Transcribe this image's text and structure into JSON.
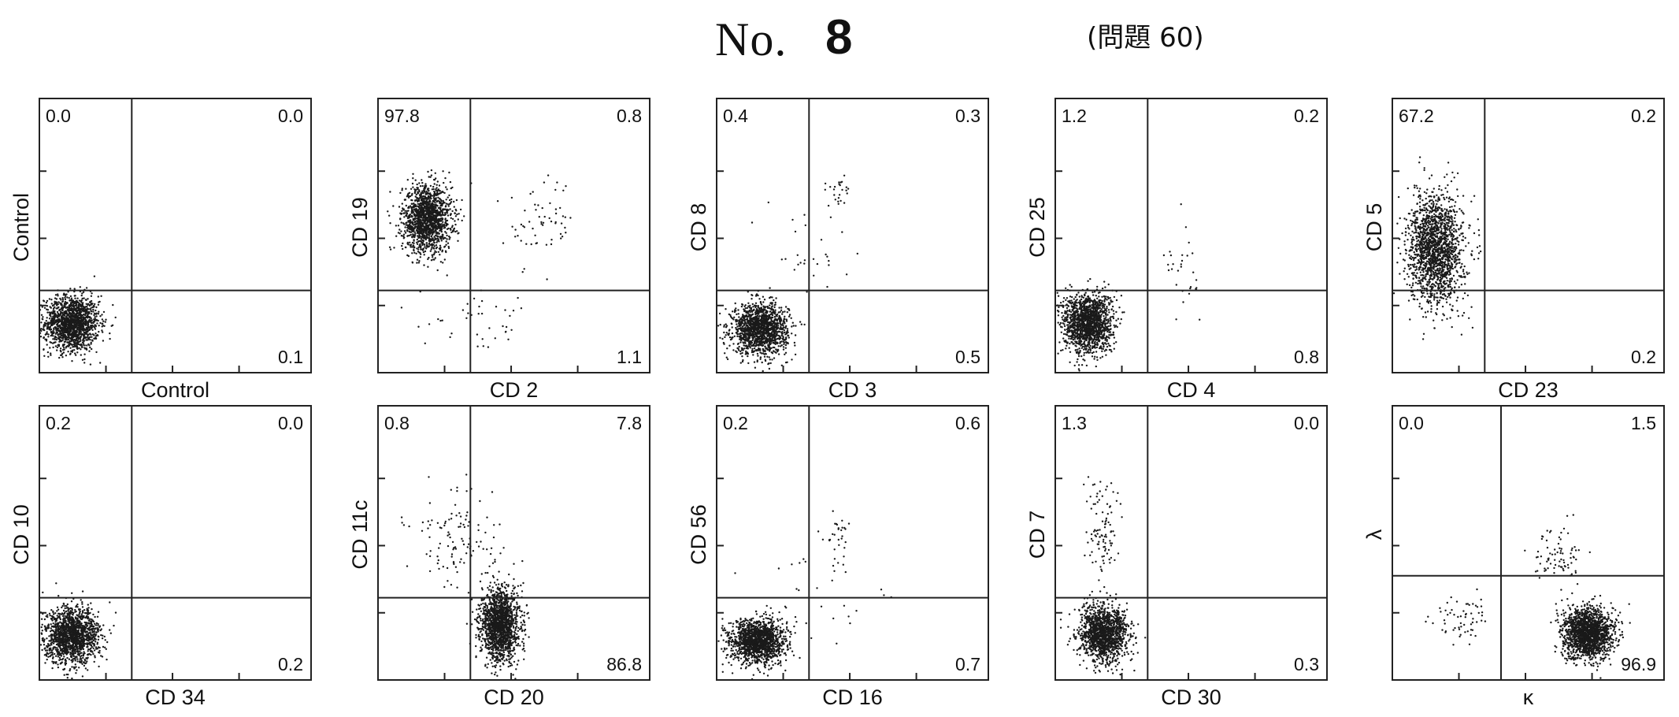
{
  "header": {
    "title_no": "No.",
    "title_number": "8",
    "reference": "(問題 60)"
  },
  "chart_data": [
    {
      "type": "scatter",
      "xlabel": "Control",
      "ylabel": "Control",
      "quadrants": {
        "upper_left": "0.0",
        "upper_right": "0.0",
        "lower_left": "",
        "lower_right": "0.1"
      },
      "populations": [
        {
          "cx": 0.12,
          "cy": 0.18,
          "sx": 0.1,
          "sy": 0.1,
          "n": 1500
        }
      ],
      "gate_x": 0.34,
      "gate_y": 0.3
    },
    {
      "type": "scatter",
      "xlabel": "CD 2",
      "ylabel": "CD 19",
      "quadrants": {
        "upper_left": "97.8",
        "upper_right": "0.8",
        "lower_left": "",
        "lower_right": "1.1"
      },
      "populations": [
        {
          "cx": 0.18,
          "cy": 0.56,
          "sx": 0.09,
          "sy": 0.12,
          "n": 1500
        },
        {
          "cx": 0.6,
          "cy": 0.55,
          "sx": 0.12,
          "sy": 0.16,
          "n": 60
        },
        {
          "cx": 0.4,
          "cy": 0.18,
          "sx": 0.25,
          "sy": 0.1,
          "n": 40
        }
      ],
      "gate_x": 0.34,
      "gate_y": 0.3
    },
    {
      "type": "scatter",
      "xlabel": "CD 3",
      "ylabel": "CD 8",
      "quadrants": {
        "upper_left": "0.4",
        "upper_right": "0.3",
        "lower_left": "",
        "lower_right": "0.5"
      },
      "populations": [
        {
          "cx": 0.16,
          "cy": 0.16,
          "sx": 0.1,
          "sy": 0.09,
          "n": 1500
        },
        {
          "cx": 0.45,
          "cy": 0.65,
          "sx": 0.05,
          "sy": 0.07,
          "n": 25
        },
        {
          "cx": 0.35,
          "cy": 0.45,
          "sx": 0.2,
          "sy": 0.18,
          "n": 30
        }
      ],
      "gate_x": 0.34,
      "gate_y": 0.3
    },
    {
      "type": "scatter",
      "xlabel": "CD 4",
      "ylabel": "CD 25",
      "quadrants": {
        "upper_left": "1.2",
        "upper_right": "0.2",
        "lower_left": "",
        "lower_right": "0.8"
      },
      "populations": [
        {
          "cx": 0.12,
          "cy": 0.18,
          "sx": 0.09,
          "sy": 0.11,
          "n": 1500
        },
        {
          "cx": 0.48,
          "cy": 0.35,
          "sx": 0.08,
          "sy": 0.14,
          "n": 30
        }
      ],
      "gate_x": 0.34,
      "gate_y": 0.3
    },
    {
      "type": "scatter",
      "xlabel": "CD 23",
      "ylabel": "CD 5",
      "quadrants": {
        "upper_left": "67.2",
        "upper_right": "0.2",
        "lower_left": "",
        "lower_right": "0.2"
      },
      "populations": [
        {
          "cx": 0.16,
          "cy": 0.45,
          "sx": 0.1,
          "sy": 0.2,
          "n": 1700
        }
      ],
      "gate_x": 0.34,
      "gate_y": 0.3
    },
    {
      "type": "scatter",
      "xlabel": "CD 34",
      "ylabel": "CD 10",
      "quadrants": {
        "upper_left": "0.2",
        "upper_right": "0.0",
        "lower_left": "",
        "lower_right": "0.2"
      },
      "populations": [
        {
          "cx": 0.12,
          "cy": 0.16,
          "sx": 0.1,
          "sy": 0.1,
          "n": 1500
        }
      ],
      "gate_x": 0.34,
      "gate_y": 0.3
    },
    {
      "type": "scatter",
      "xlabel": "CD 20",
      "ylabel": "CD 11c",
      "quadrants": {
        "upper_left": "0.8",
        "upper_right": "7.8",
        "lower_left": "",
        "lower_right": "86.8"
      },
      "populations": [
        {
          "cx": 0.45,
          "cy": 0.2,
          "sx": 0.07,
          "sy": 0.13,
          "n": 1600
        },
        {
          "cx": 0.3,
          "cy": 0.5,
          "sx": 0.18,
          "sy": 0.18,
          "n": 120
        }
      ],
      "gate_x": 0.34,
      "gate_y": 0.3
    },
    {
      "type": "scatter",
      "xlabel": "CD 16",
      "ylabel": "CD 56",
      "quadrants": {
        "upper_left": "0.2",
        "upper_right": "0.6",
        "lower_left": "",
        "lower_right": "0.7"
      },
      "populations": [
        {
          "cx": 0.15,
          "cy": 0.14,
          "sx": 0.1,
          "sy": 0.08,
          "n": 1500
        },
        {
          "cx": 0.45,
          "cy": 0.5,
          "sx": 0.06,
          "sy": 0.08,
          "n": 30
        },
        {
          "cx": 0.4,
          "cy": 0.3,
          "sx": 0.25,
          "sy": 0.2,
          "n": 30
        }
      ],
      "gate_x": 0.34,
      "gate_y": 0.3
    },
    {
      "type": "scatter",
      "xlabel": "CD 30",
      "ylabel": "CD 7",
      "quadrants": {
        "upper_left": "1.3",
        "upper_right": "0.0",
        "lower_left": "",
        "lower_right": "0.3"
      },
      "populations": [
        {
          "cx": 0.18,
          "cy": 0.17,
          "sx": 0.09,
          "sy": 0.1,
          "n": 1400
        },
        {
          "cx": 0.17,
          "cy": 0.55,
          "sx": 0.07,
          "sy": 0.18,
          "n": 100
        }
      ],
      "gate_x": 0.34,
      "gate_y": 0.3
    },
    {
      "type": "scatter",
      "xlabel": "κ",
      "ylabel": "λ",
      "quadrants": {
        "upper_left": "0.0",
        "upper_right": "1.5",
        "lower_left": "",
        "lower_right": "96.9"
      },
      "populations": [
        {
          "cx": 0.72,
          "cy": 0.17,
          "sx": 0.09,
          "sy": 0.09,
          "n": 1700
        },
        {
          "cx": 0.25,
          "cy": 0.22,
          "sx": 0.1,
          "sy": 0.1,
          "n": 60
        },
        {
          "cx": 0.6,
          "cy": 0.45,
          "sx": 0.1,
          "sy": 0.12,
          "n": 80
        }
      ],
      "gate_x": 0.4,
      "gate_y": 0.38
    }
  ]
}
